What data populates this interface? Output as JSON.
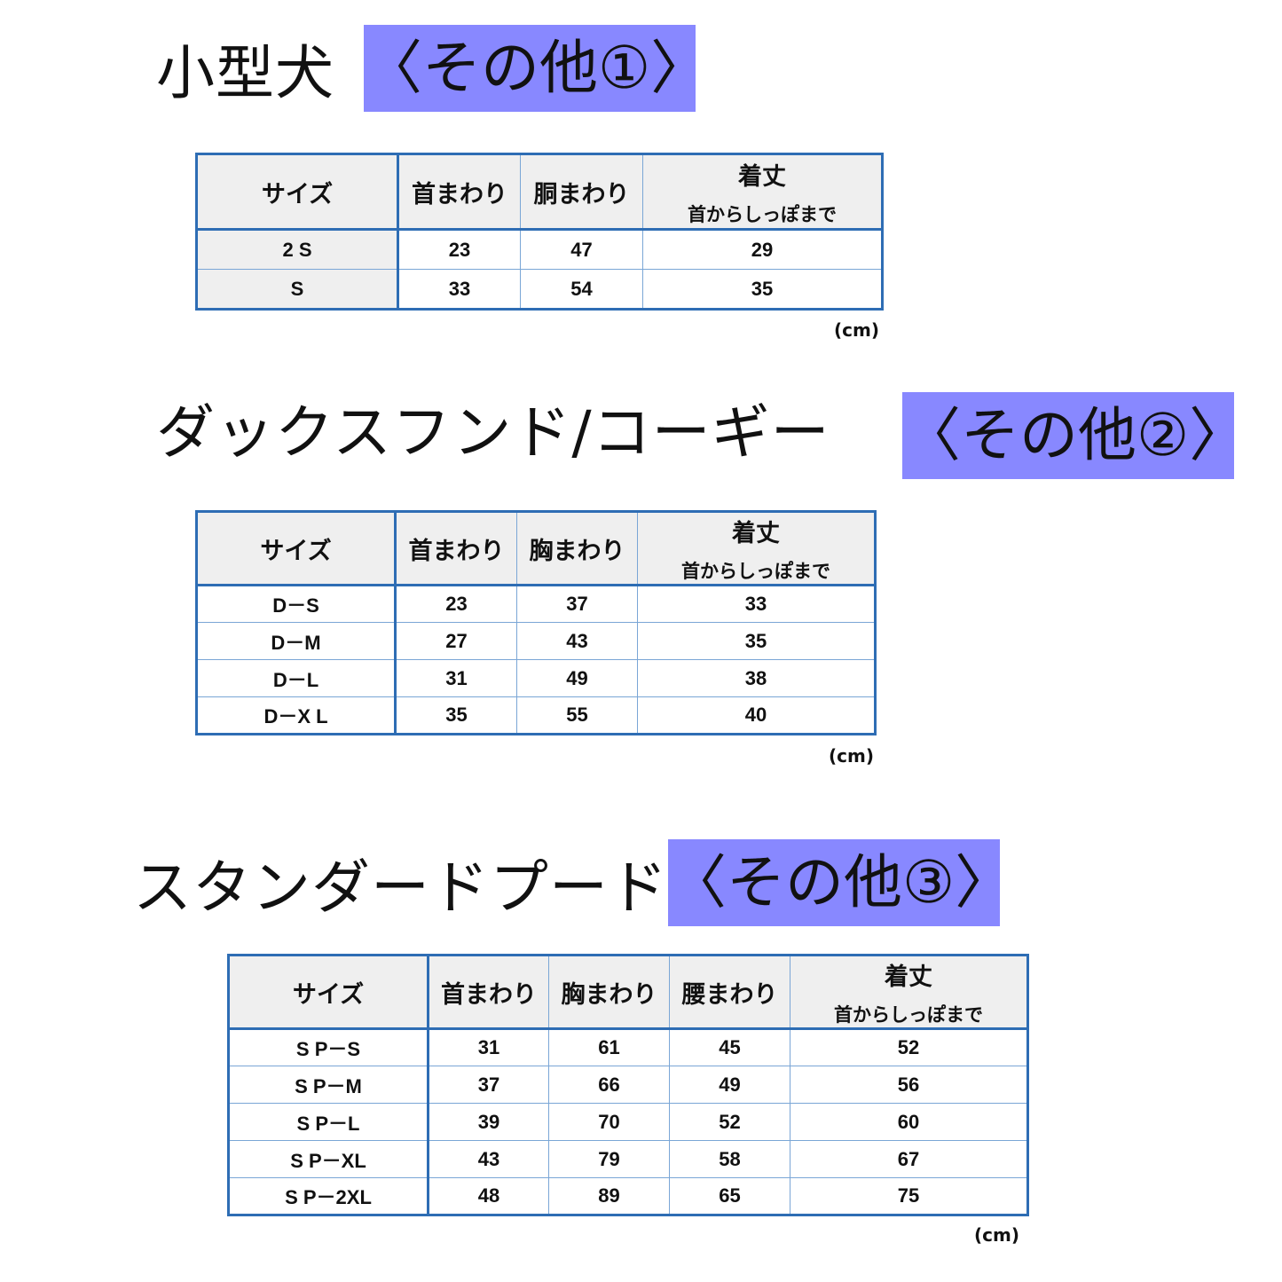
{
  "sections": [
    {
      "title": "小型犬",
      "badge": "〈その他①〉",
      "headers": [
        "サイズ",
        "首まわり",
        "胴まわり",
        {
          "main": "着丈",
          "sub": "首からしっぽまで"
        }
      ],
      "rows": [
        [
          "2 S",
          "23",
          "47",
          "29"
        ],
        [
          "S",
          "33",
          "54",
          "35"
        ]
      ],
      "unit": "(cm)"
    },
    {
      "title": "ダックスフンド/コーギー",
      "badge": "〈その他②〉",
      "headers": [
        "サイズ",
        "首まわり",
        "胸まわり",
        {
          "main": "着丈",
          "sub": "首からしっぽまで"
        }
      ],
      "rows": [
        [
          "D－S",
          "23",
          "37",
          "33"
        ],
        [
          "D－M",
          "27",
          "43",
          "35"
        ],
        [
          "D－L",
          "31",
          "49",
          "38"
        ],
        [
          "D－X L",
          "35",
          "55",
          "40"
        ]
      ],
      "unit": "(cm)"
    },
    {
      "title": "スタンダードプードル",
      "badge": "〈その他③〉",
      "headers": [
        "サイズ",
        "首まわり",
        "胸まわり",
        "腰まわり",
        {
          "main": "着丈",
          "sub": "首からしっぽまで"
        }
      ],
      "rows": [
        [
          "S P－S",
          "31",
          "61",
          "45",
          "52"
        ],
        [
          "S P－M",
          "37",
          "66",
          "49",
          "56"
        ],
        [
          "S P－L",
          "39",
          "70",
          "52",
          "60"
        ],
        [
          "S P－XL",
          "43",
          "79",
          "58",
          "67"
        ],
        [
          "S P－2XL",
          "48",
          "89",
          "65",
          "75"
        ]
      ],
      "unit": "(cm)"
    }
  ],
  "colors": {
    "badge": "#8888ff",
    "table_border": "#2e6db4",
    "header_bg": "#efefef"
  }
}
